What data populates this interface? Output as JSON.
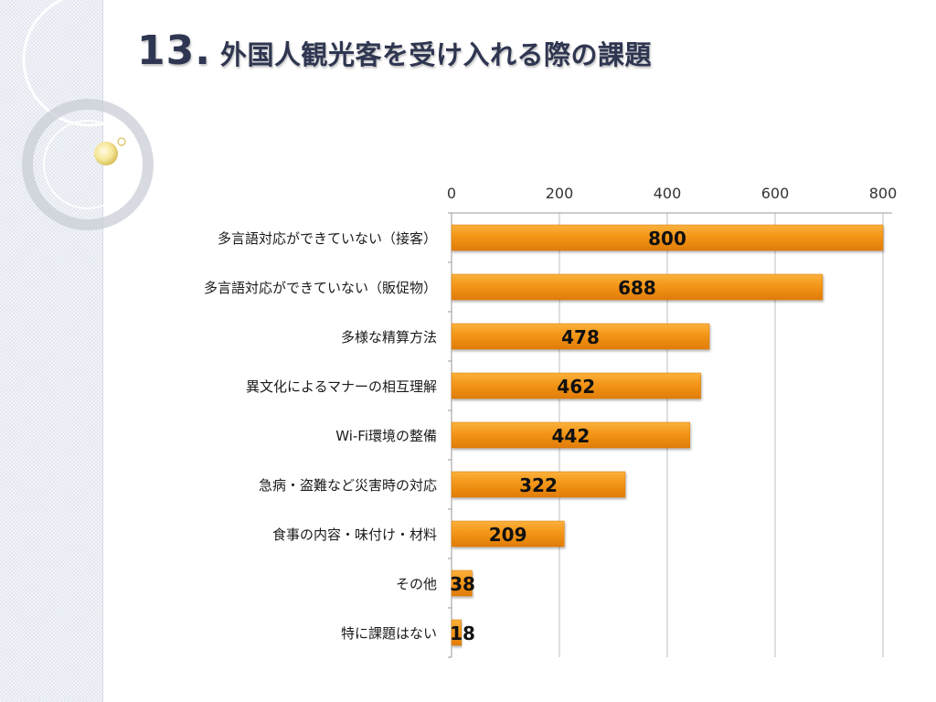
{
  "slide": {
    "title_number": "13.",
    "title_text": "外国人観光客を受け入れる際の課題"
  },
  "chart_data": {
    "type": "bar",
    "orientation": "horizontal",
    "categories": [
      "多言語対応ができていない（接客）",
      "多言語対応ができていない（販促物）",
      "多様な精算方法",
      "異文化によるマナーの相互理解",
      "Wi-Fi環境の整備",
      "急病・盗難など災害時の対応",
      "食事の内容・味付け・材料",
      "その他",
      "特に課題はない"
    ],
    "values": [
      800,
      688,
      478,
      462,
      442,
      322,
      209,
      38,
      18
    ],
    "xlim": [
      0,
      800
    ],
    "x_ticks": [
      "0",
      "200",
      "400",
      "600",
      "800"
    ],
    "axis_position": "top",
    "grid": true,
    "legend": "none",
    "bar_color": "#f28c0f",
    "data_labels": true
  }
}
